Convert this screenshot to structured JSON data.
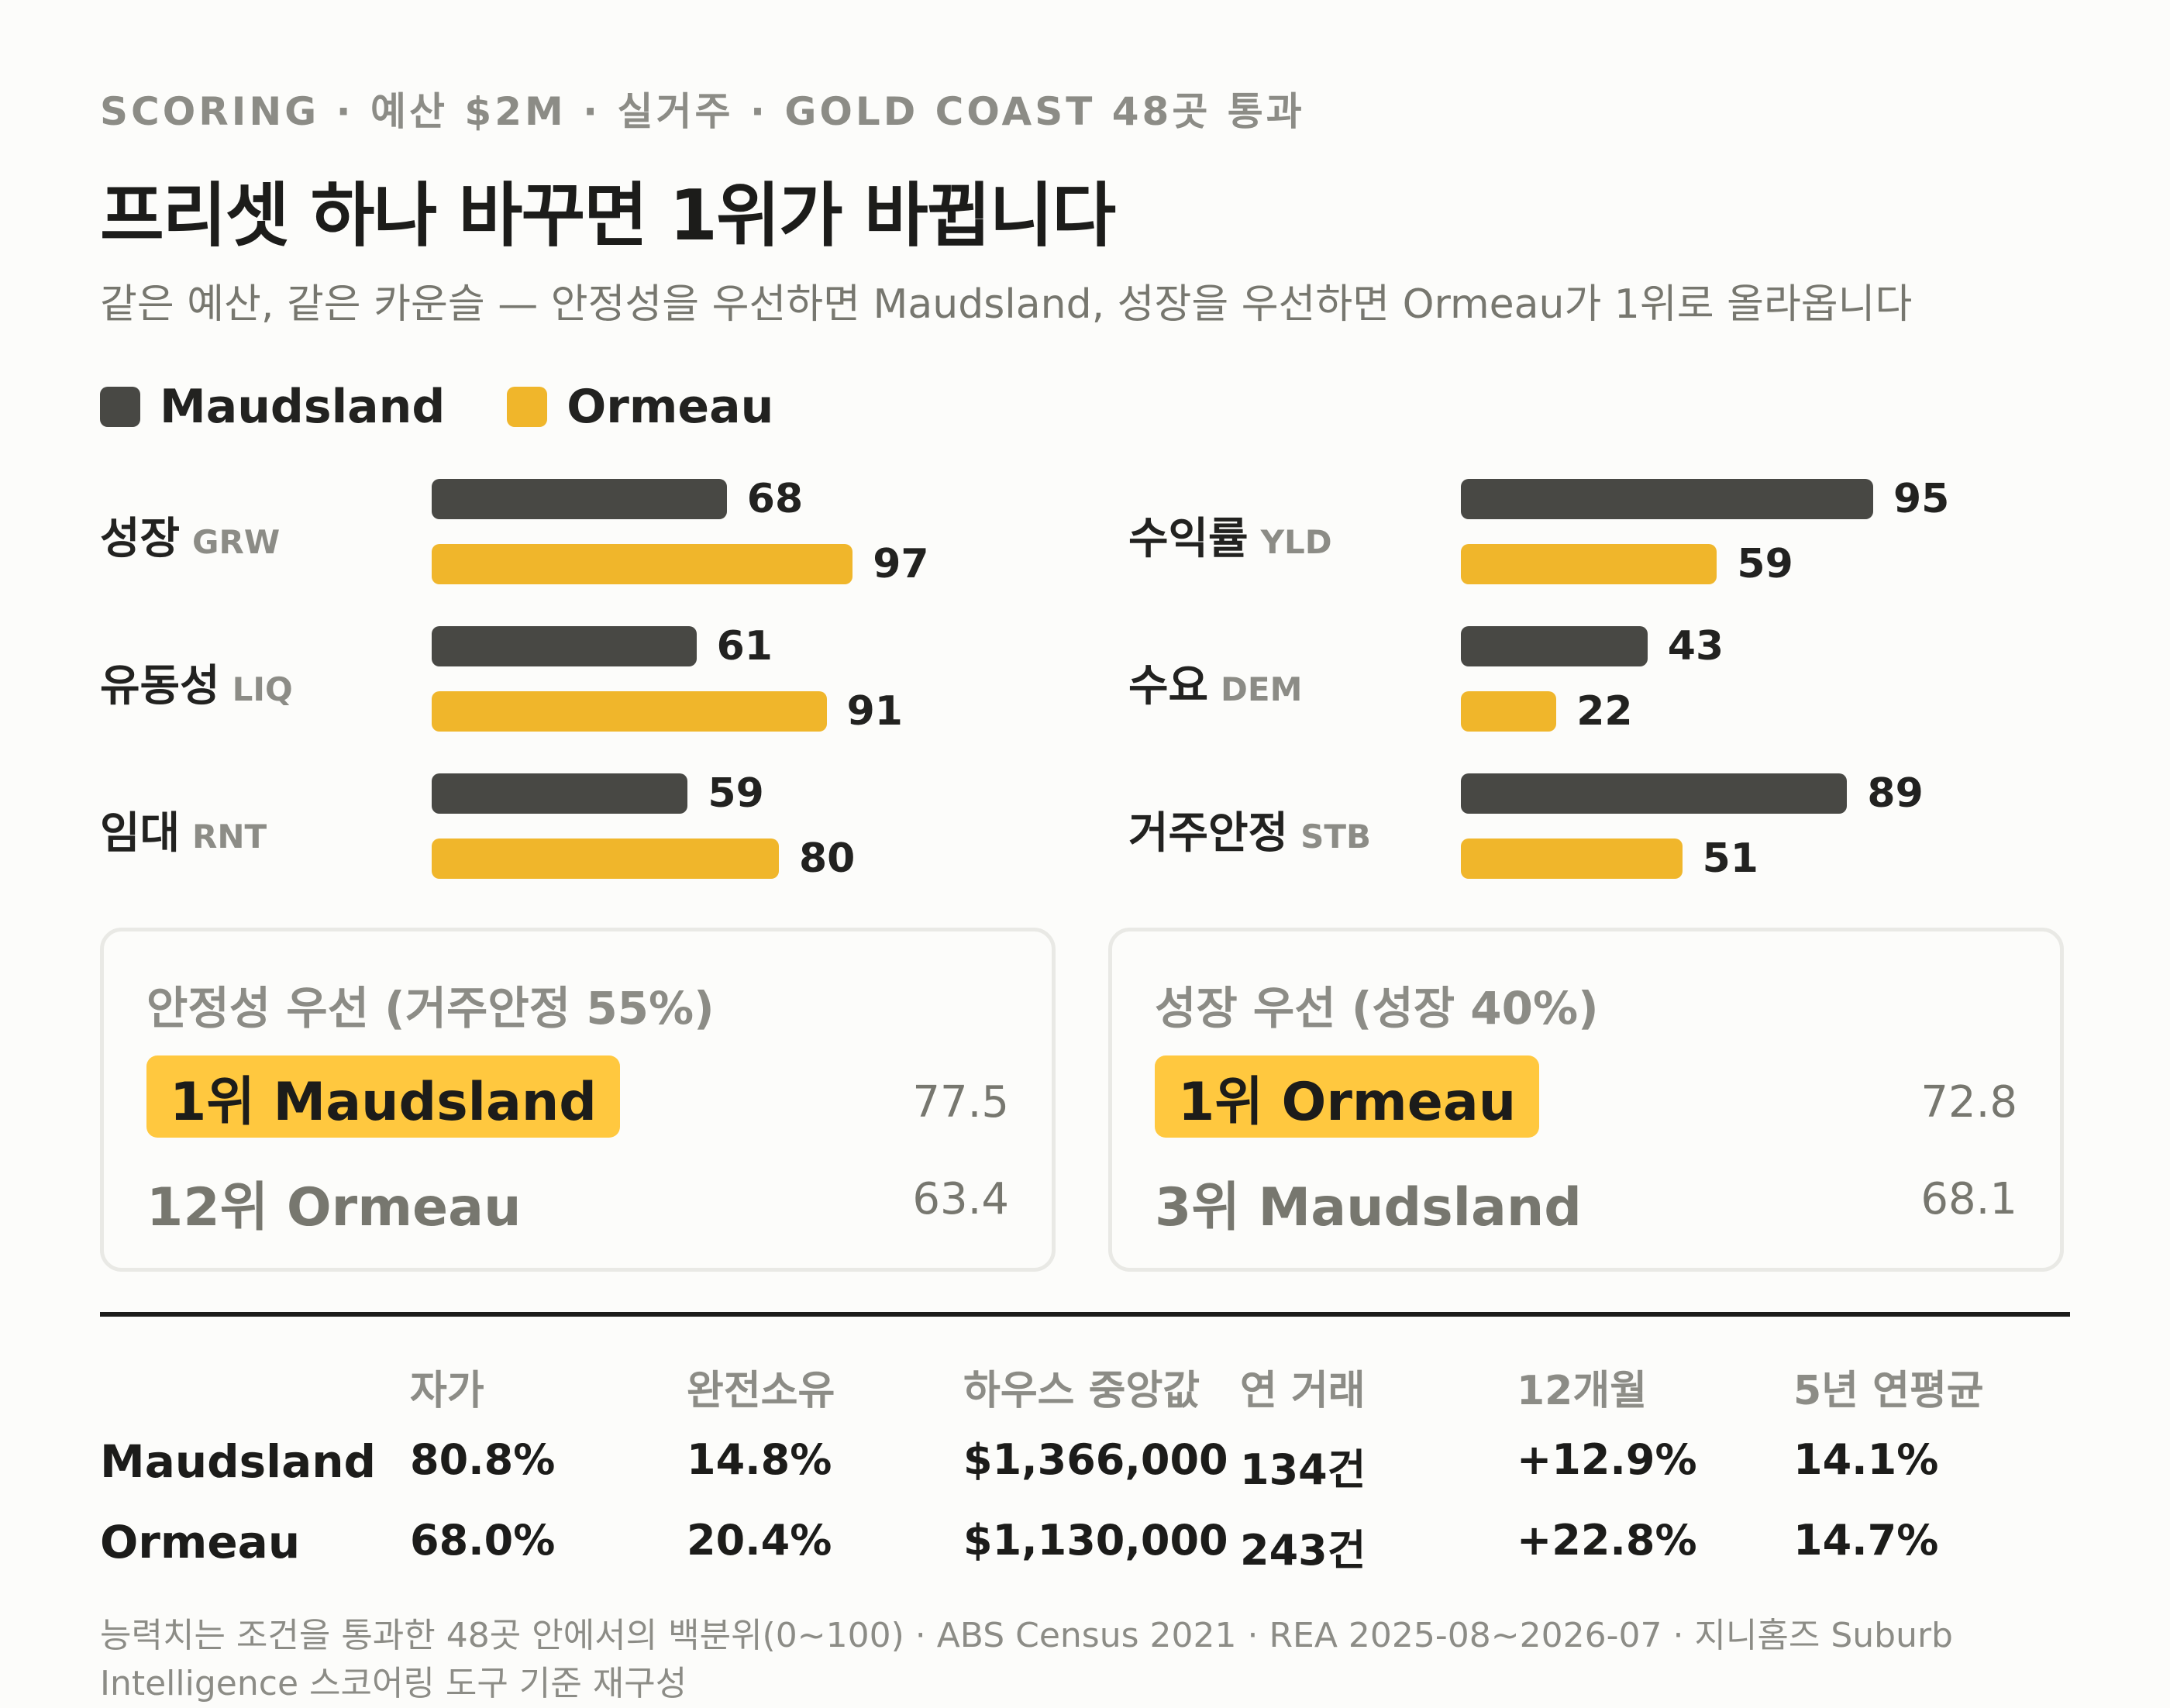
{
  "header": {
    "eyebrow": "SCORING · 예산 $2M · 실거주 · GOLD COAST 48곳 통과",
    "title": "프리셋 하나 바꾸면 1위가 바뀝니다",
    "subtitle": "같은 예산, 같은 카운슬 — 안정성을 우선하면 Maudsland, 성장을 우선하면 Ormeau가 1위로 올라옵니다"
  },
  "legend": [
    {
      "name": "Maudsland",
      "color": "#484844"
    },
    {
      "name": "Ormeau",
      "color": "#f0b62b"
    }
  ],
  "chart_data": {
    "type": "bar",
    "orientation": "horizontal",
    "categories": [
      {
        "label": "성장",
        "code": "GRW"
      },
      {
        "label": "유동성",
        "code": "LIQ"
      },
      {
        "label": "임대",
        "code": "RNT"
      },
      {
        "label": "수익률",
        "code": "YLD"
      },
      {
        "label": "수요",
        "code": "DEM"
      },
      {
        "label": "거주안정",
        "code": "STB"
      }
    ],
    "series": [
      {
        "name": "Maudsland",
        "color": "#484844",
        "values": [
          68,
          61,
          59,
          95,
          43,
          89
        ]
      },
      {
        "name": "Ormeau",
        "color": "#f0b62b",
        "values": [
          97,
          91,
          80,
          59,
          22,
          51
        ]
      }
    ],
    "xlim": [
      0,
      100
    ],
    "grid": false,
    "legend_position": "top-left"
  },
  "presets": [
    {
      "heading": "안정성 우선 (거주안정 55%)",
      "winner": "1위 Maudsland",
      "winner_score": "77.5",
      "runner": "12위 Ormeau",
      "runner_score": "63.4"
    },
    {
      "heading": "성장 우선 (성장 40%)",
      "winner": "1위 Ormeau",
      "winner_score": "72.8",
      "runner": "3위 Maudsland",
      "runner_score": "68.1"
    }
  ],
  "table": {
    "headers": [
      "자가",
      "완전소유",
      "하우스 중앙값",
      "연 거래",
      "12개월",
      "5년 연평균"
    ],
    "rows": [
      {
        "name": "Maudsland",
        "cells": [
          "80.8%",
          "14.8%",
          "$1,366,000",
          "134건",
          "+12.9%",
          "14.1%"
        ]
      },
      {
        "name": "Ormeau",
        "cells": [
          "68.0%",
          "20.4%",
          "$1,130,000",
          "243건",
          "+22.8%",
          "14.7%"
        ]
      }
    ]
  },
  "footnote": "능력치는 조건을 통과한 48곳 안에서의 백분위(0~100) · ABS Census 2021 · REA 2025-08~2026-07 · 지니홈즈 Suburb Intelligence 스코어링 도구 기준 재구성"
}
